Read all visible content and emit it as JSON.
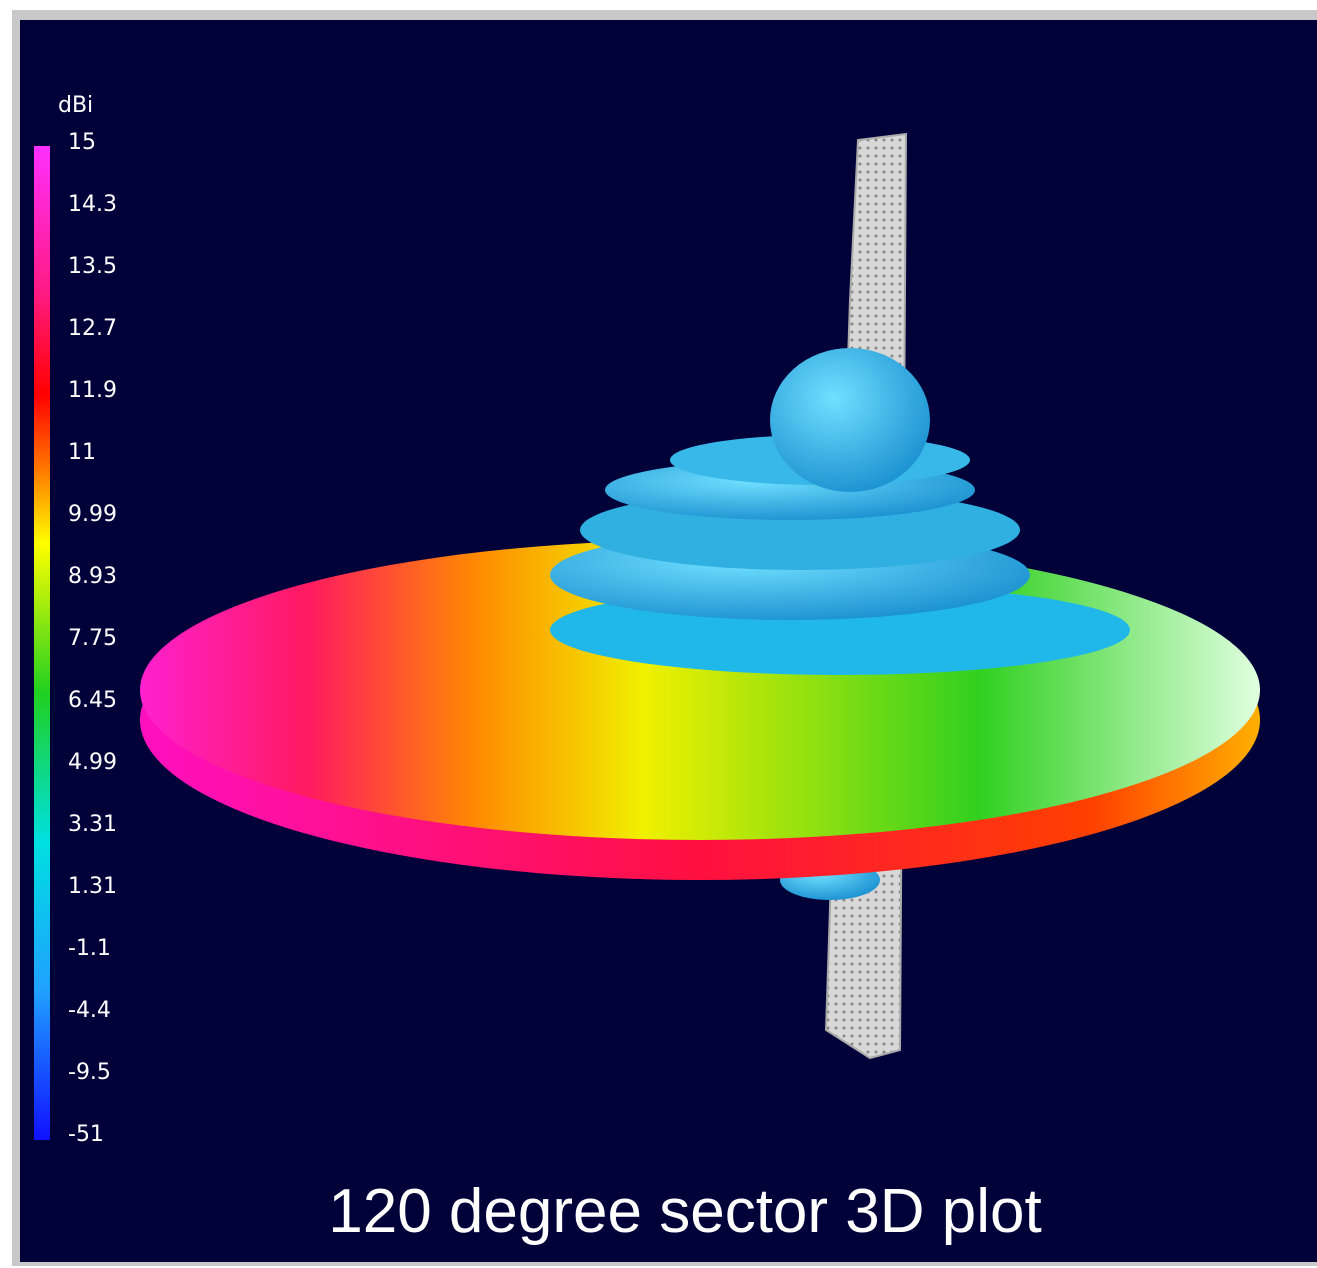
{
  "colorbar": {
    "unit": "dBi",
    "labels": [
      "15",
      "14.3",
      "13.5",
      "12.7",
      "11.9",
      "11",
      "9.99",
      "8.93",
      "7.75",
      "6.45",
      "4.99",
      "3.31",
      "1.31",
      "-1.1",
      "-4.4",
      "-9.5",
      "-51"
    ]
  },
  "caption": "120 degree sector 3D plot"
}
